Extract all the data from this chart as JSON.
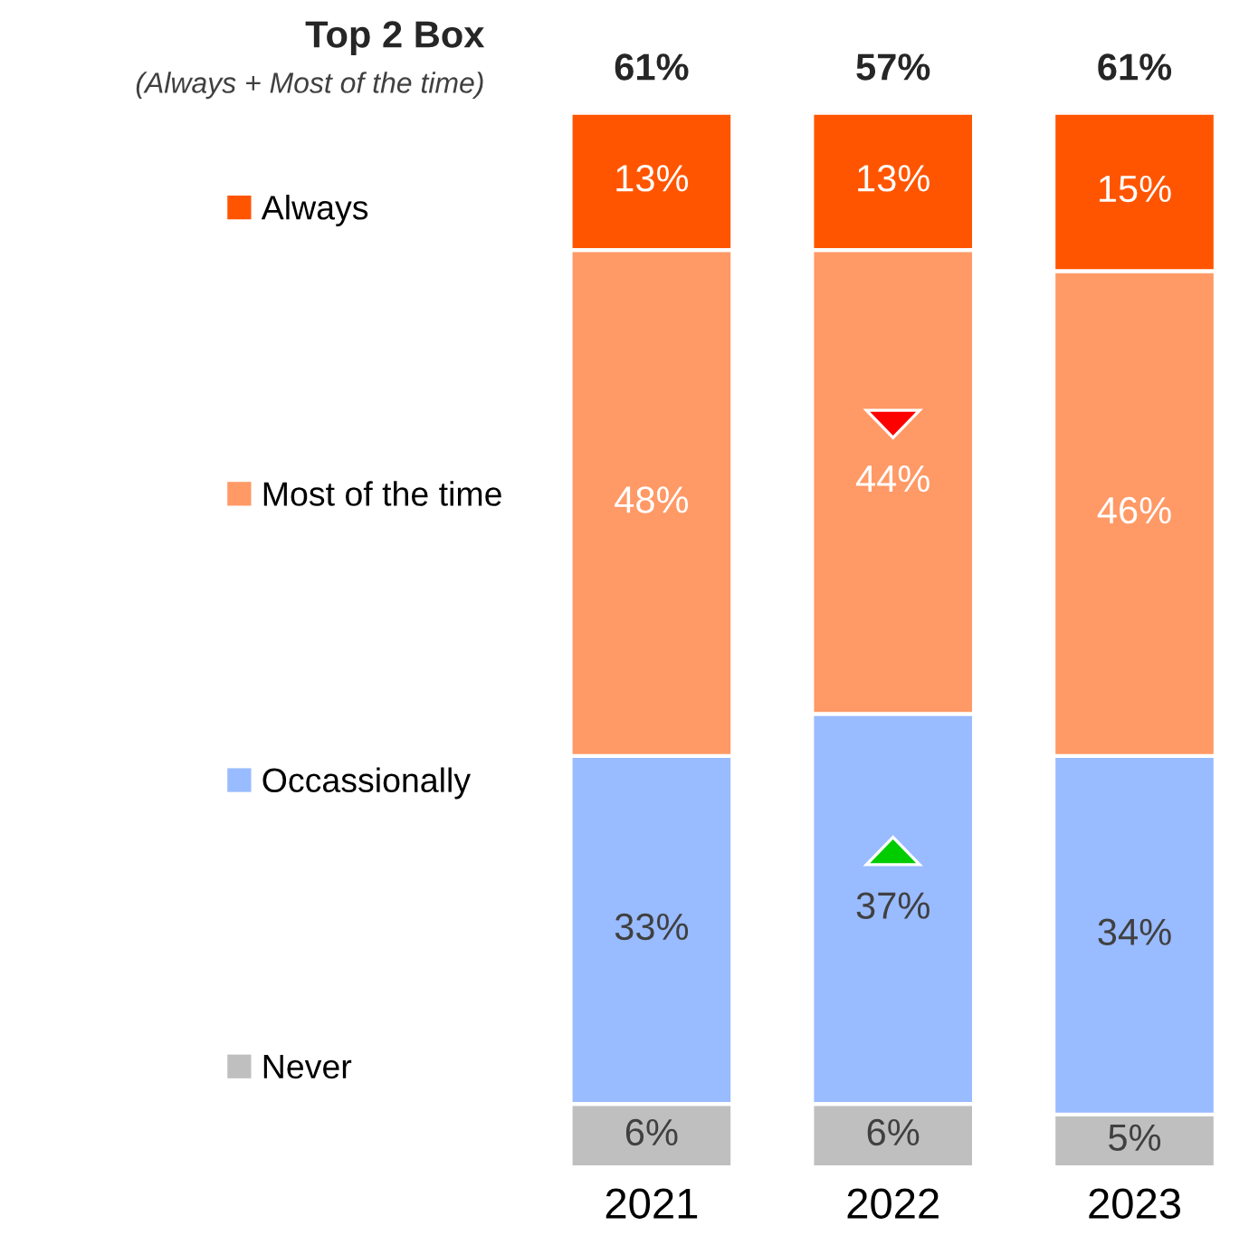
{
  "chart_data": {
    "type": "bar",
    "stacked": true,
    "title": "Top 2 Box",
    "subtitle": "(Always + Most of the time)",
    "categories": [
      "2021",
      "2022",
      "2023"
    ],
    "series": [
      {
        "name": "Never",
        "color": "#bfbfbf",
        "values": [
          6,
          6,
          5
        ],
        "value_labels": [
          "6%",
          "6%",
          "5%"
        ]
      },
      {
        "name": "Occassionally",
        "color": "#99bbff",
        "values": [
          33,
          37,
          34
        ],
        "value_labels": [
          "33%",
          "37%",
          "34%"
        ]
      },
      {
        "name": "Most of the time",
        "color": "#ff9966",
        "values": [
          48,
          44,
          46
        ],
        "value_labels": [
          "48%",
          "44%",
          "46%"
        ]
      },
      {
        "name": "Always",
        "color": "#ff5500",
        "values": [
          13,
          13,
          15
        ],
        "value_labels": [
          "13%",
          "13%",
          "15%"
        ]
      }
    ],
    "annotations": [
      {
        "text": "61%",
        "x": "2021",
        "y": 100
      },
      {
        "text": "57%",
        "x": "2022",
        "y": 100
      },
      {
        "text": "61%",
        "x": "2023",
        "y": 100
      }
    ],
    "ylim": [
      0,
      100
    ],
    "tick_labels": "x",
    "legend": "left",
    "grid": false
  }
}
